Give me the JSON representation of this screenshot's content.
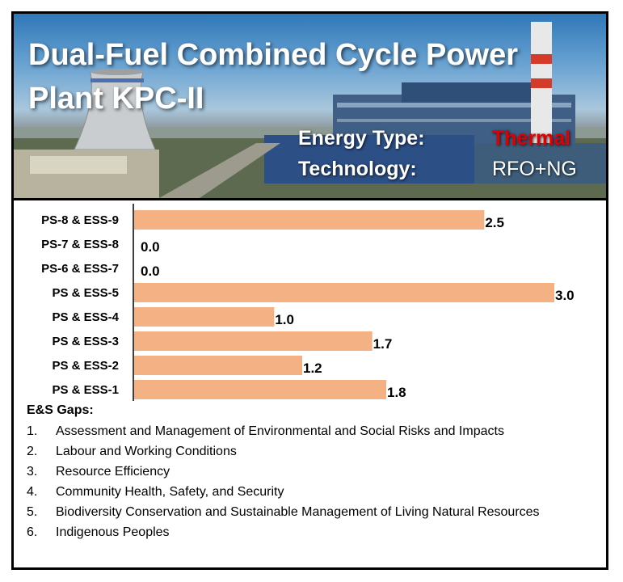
{
  "header": {
    "title": "Dual-Fuel Combined Cycle Power Plant KPC-II",
    "energy_type_label": "Energy Type:",
    "energy_type_value": "Thermal",
    "technology_label": "Technology:",
    "technology_value": "RFO+NG",
    "energy_type_color": "#e00000"
  },
  "chart_data": {
    "type": "bar",
    "orientation": "horizontal",
    "categories": [
      "PS-8 & ESS-9",
      "PS-7 & ESS-8",
      "PS-6 & ESS-7",
      "PS & ESS-5",
      "PS & ESS-4",
      "PS & ESS-3",
      "PS & ESS-2",
      "PS & ESS-1"
    ],
    "values": [
      2.5,
      0.0,
      0.0,
      3.0,
      1.0,
      1.7,
      1.2,
      1.8
    ],
    "value_labels": [
      "2.5",
      "0.0",
      "0.0",
      "3.0",
      "1.0",
      "1.7",
      "1.2",
      "1.8"
    ],
    "xlim": [
      0,
      3.0
    ],
    "bar_color": "#f4b183",
    "grid": false,
    "title": "",
    "xlabel": "",
    "ylabel": ""
  },
  "gaps": {
    "title": "E&S Gaps:",
    "items": [
      {
        "num": "1.",
        "text": "Assessment and Management of Environmental and Social Risks and Impacts"
      },
      {
        "num": "2.",
        "text": "Labour and Working Conditions"
      },
      {
        "num": "3.",
        "text": "Resource Efficiency"
      },
      {
        "num": "4.",
        "text": "Community Health, Safety, and Security"
      },
      {
        "num": "5.",
        "text": "Biodiversity Conservation and Sustainable Management of Living Natural Resources"
      },
      {
        "num": "6.",
        "text": "Indigenous Peoples"
      }
    ]
  }
}
